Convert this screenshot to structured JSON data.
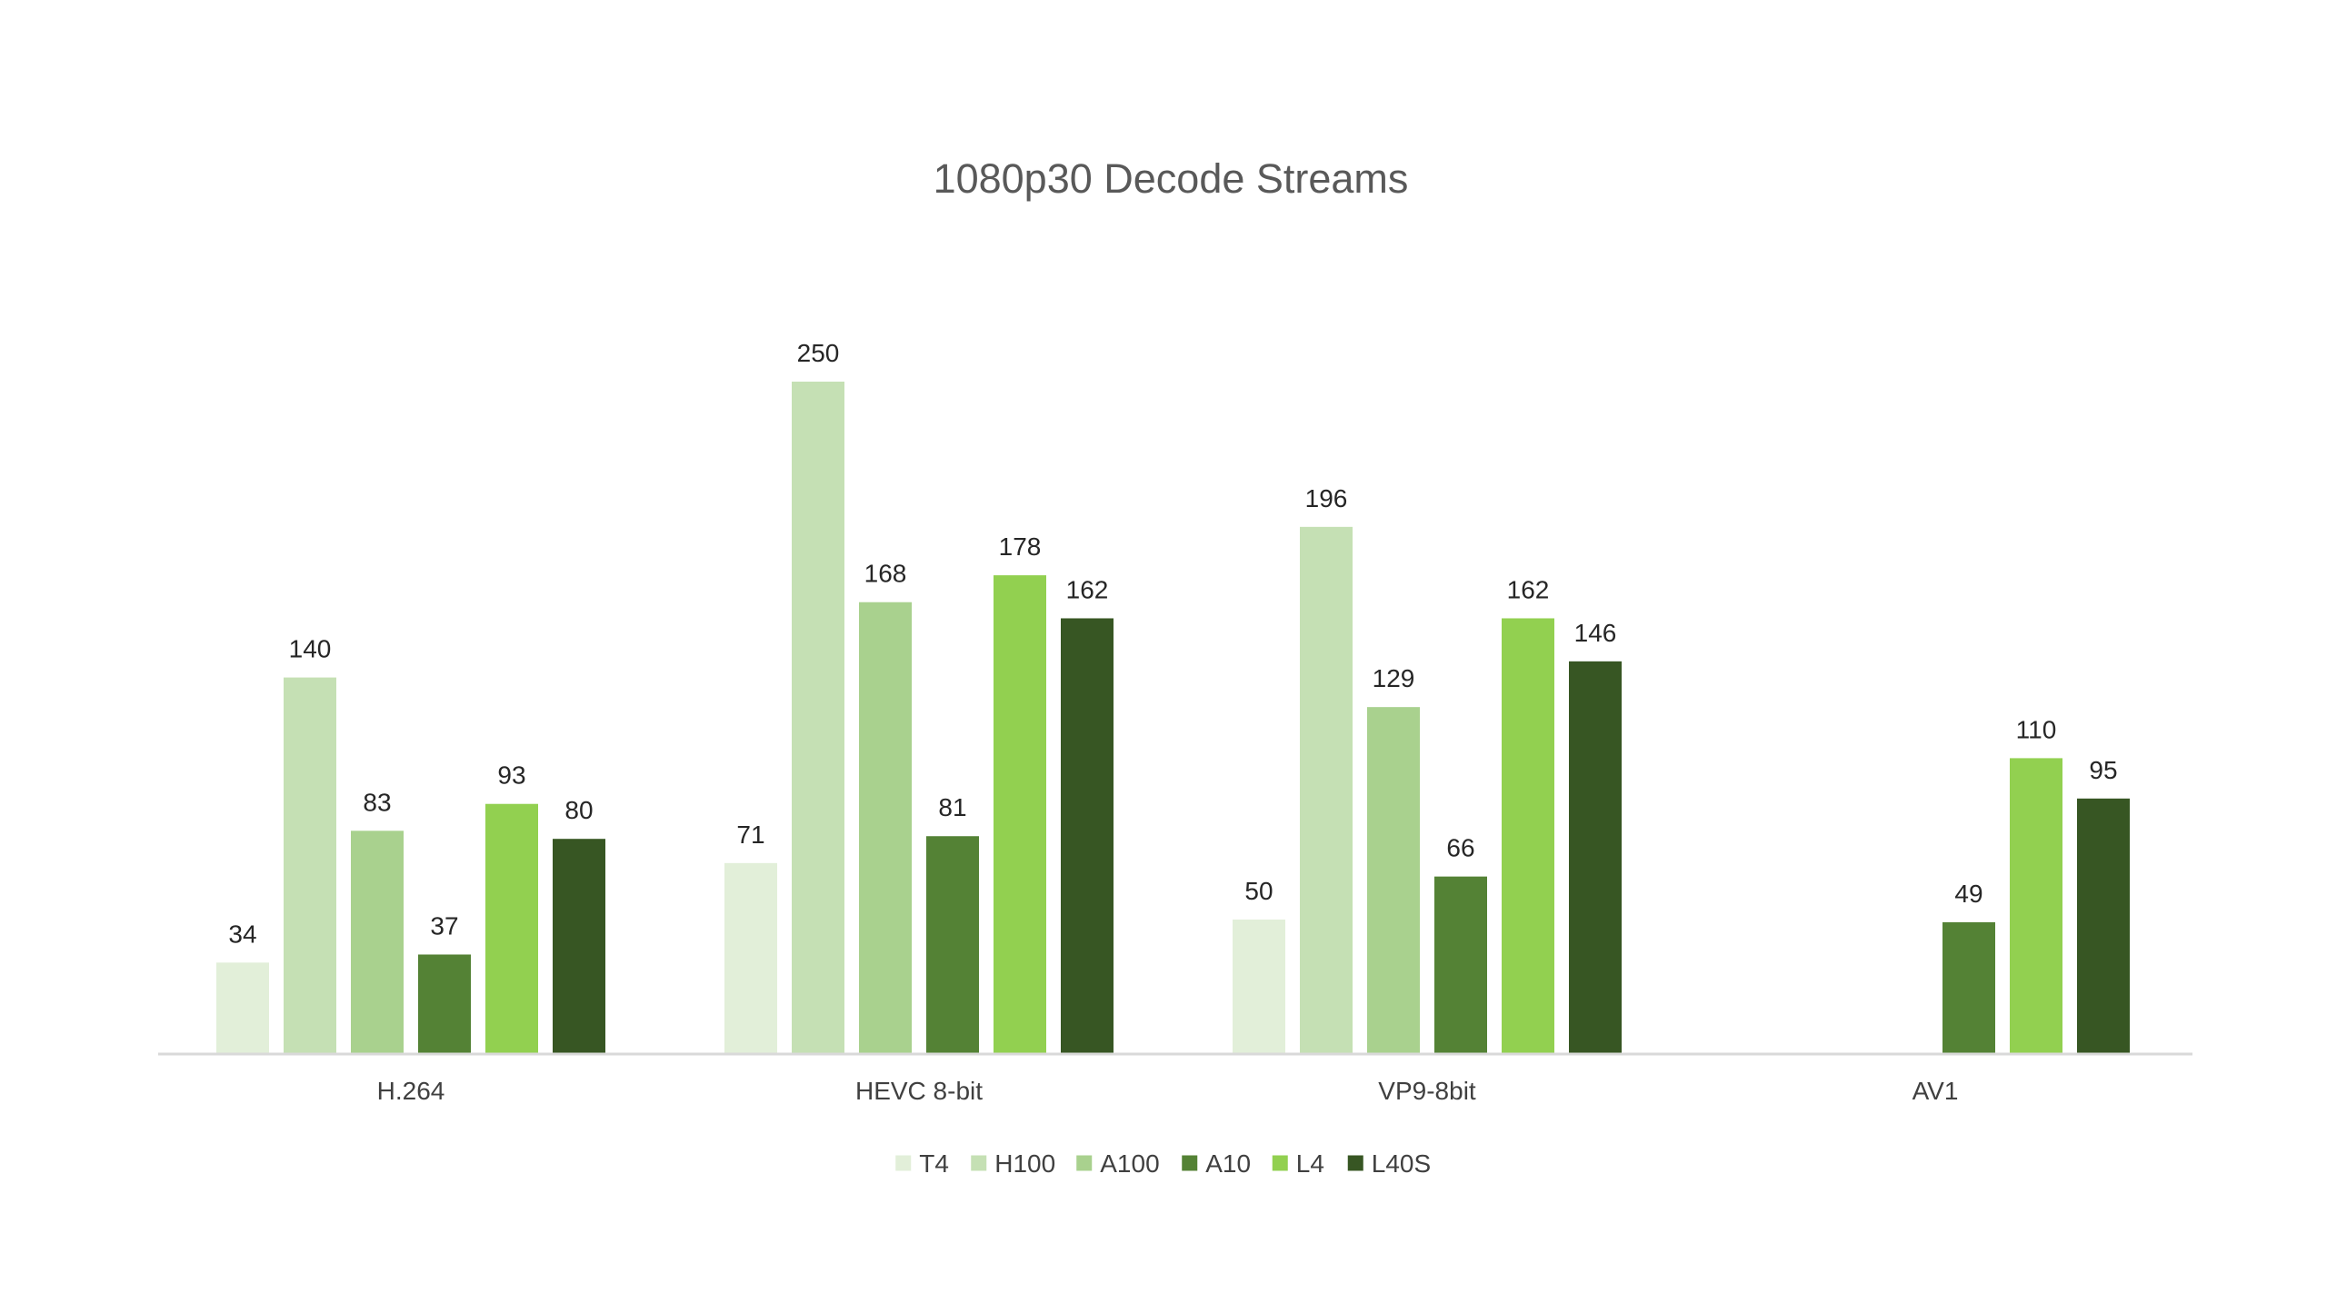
{
  "chart_data": {
    "type": "bar",
    "title": "1080p30 Decode Streams",
    "xlabel": "",
    "ylabel": "",
    "ylim": [
      0,
      250
    ],
    "grid": false,
    "legend_position": "bottom",
    "categories": [
      "H.264",
      "HEVC 8-bit",
      "VP9-8bit",
      "AV1"
    ],
    "series": [
      {
        "name": "T4",
        "color": "#e2efd9",
        "values": [
          34,
          71,
          50,
          null
        ]
      },
      {
        "name": "H100",
        "color": "#c5e0b4",
        "values": [
          140,
          250,
          196,
          null
        ]
      },
      {
        "name": "A100",
        "color": "#a9d18e",
        "values": [
          83,
          168,
          129,
          null
        ]
      },
      {
        "name": "A10",
        "color": "#548235",
        "values": [
          37,
          81,
          66,
          49
        ]
      },
      {
        "name": "L4",
        "color": "#92d050",
        "values": [
          93,
          178,
          162,
          110
        ]
      },
      {
        "name": "L40S",
        "color": "#375623",
        "values": [
          80,
          162,
          146,
          95
        ]
      }
    ]
  },
  "colors": {
    "title": "#595959",
    "axis_label": "#404040",
    "data_label": "#262626",
    "axis_line": "#d9d9d9"
  }
}
